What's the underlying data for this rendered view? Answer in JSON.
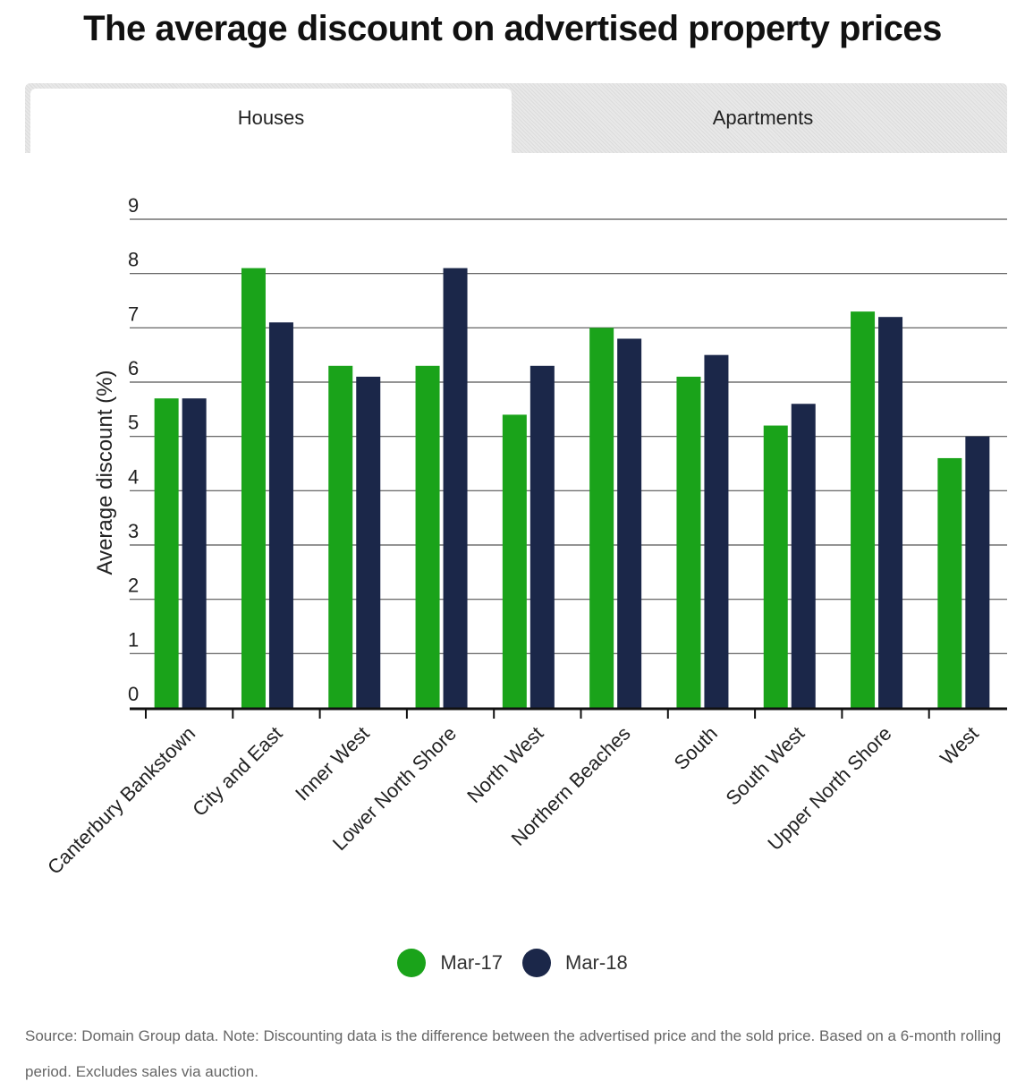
{
  "title": "The average discount on advertised property prices",
  "tabs": [
    {
      "label": "Houses",
      "active": true
    },
    {
      "label": "Apartments",
      "active": false
    }
  ],
  "colors": {
    "mar17": "#1aa31a",
    "mar18": "#1b2749"
  },
  "chart_data": {
    "type": "bar",
    "title": "The average discount on advertised property prices",
    "xlabel": "",
    "ylabel": "Average discount (%)",
    "ylim": [
      0,
      9
    ],
    "yticks": [
      "0",
      "1",
      "2",
      "3",
      "4",
      "5",
      "6",
      "7",
      "8",
      "9"
    ],
    "grid": true,
    "legend_position": "bottom-center",
    "categories": [
      "Canterbury Bankstown",
      "City and East",
      "Inner West",
      "Lower North Shore",
      "North West",
      "Northern Beaches",
      "South",
      "South West",
      "Upper North Shore",
      "West"
    ],
    "series": [
      {
        "name": "Mar-17",
        "values": [
          5.7,
          8.1,
          6.3,
          6.3,
          5.4,
          7.0,
          6.1,
          5.2,
          7.3,
          4.6
        ]
      },
      {
        "name": "Mar-18",
        "values": [
          5.7,
          7.1,
          6.1,
          8.1,
          6.3,
          6.8,
          6.5,
          5.6,
          7.2,
          5.0
        ]
      }
    ]
  },
  "legend": [
    {
      "label": "Mar-17"
    },
    {
      "label": "Mar-18"
    }
  ],
  "source_note": "Source: Domain Group data. Note: Discounting data is the difference between the advertised price and the sold price. Based on a 6-month rolling period. Excludes sales via auction."
}
